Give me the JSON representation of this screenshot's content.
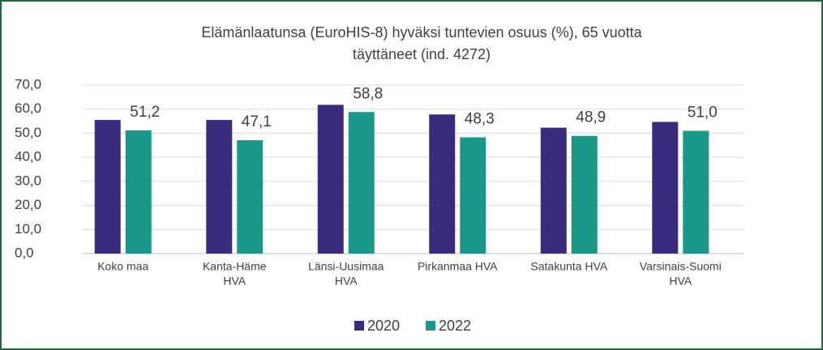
{
  "chart_data": {
    "type": "bar",
    "title": [
      "Elämänlaatunsa (EuroHIS-8) hyväksi tuntevien osuus (%), 65 vuotta",
      "täyttäneet (ind. 4272)"
    ],
    "categories": [
      [
        "Koko maa"
      ],
      [
        "Kanta-Häme",
        "HVA"
      ],
      [
        "Länsi-Uusimaa",
        "HVA"
      ],
      [
        "Pirkanmaa HVA"
      ],
      [
        "Satakunta HVA"
      ],
      [
        "Varsinais-Suomi",
        "HVA"
      ]
    ],
    "series": [
      {
        "name": "2020",
        "color": "#3b2b7f",
        "values": [
          55.5,
          55.5,
          61.8,
          57.8,
          52.3,
          54.7
        ]
      },
      {
        "name": "2022",
        "color": "#19988a",
        "values": [
          51.2,
          47.1,
          58.8,
          48.3,
          48.9,
          51.0
        ],
        "value_labels": [
          "51,2",
          "47,1",
          "58,8",
          "48,3",
          "48,9",
          "51,0"
        ]
      }
    ],
    "ylim": [
      0,
      70
    ],
    "yticks": [
      {
        "value": 0,
        "label": "0,0"
      },
      {
        "value": 10,
        "label": "10,0"
      },
      {
        "value": 20,
        "label": "20,0"
      },
      {
        "value": 30,
        "label": "30,0"
      },
      {
        "value": 40,
        "label": "40,0"
      },
      {
        "value": 50,
        "label": "50,0"
      },
      {
        "value": 60,
        "label": "60,0"
      },
      {
        "value": 70,
        "label": "70,0"
      }
    ],
    "grid": true,
    "legend": "bottom"
  }
}
